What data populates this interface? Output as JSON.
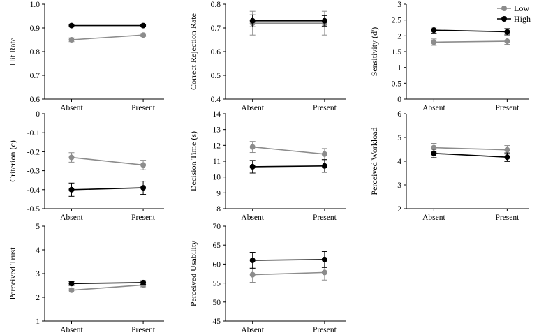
{
  "legend": [
    {
      "name": "Low",
      "color": "#8c8c8c"
    },
    {
      "name": "High",
      "color": "#000000"
    }
  ],
  "chart_data": [
    {
      "type": "line",
      "categories": [
        "Absent",
        "Present"
      ],
      "ylabel": "Hit Rate",
      "ylim": [
        0.6,
        1.0
      ],
      "yticks": [
        "0.6",
        "0.7",
        "0.8",
        "0.9",
        "1.0"
      ],
      "series": [
        {
          "name": "Low",
          "values": [
            0.85,
            0.87
          ],
          "errors": [
            0.008,
            0.006
          ]
        },
        {
          "name": "High",
          "values": [
            0.91,
            0.91
          ],
          "errors": [
            0.005,
            0.004
          ]
        }
      ]
    },
    {
      "type": "line",
      "categories": [
        "Absent",
        "Present"
      ],
      "ylabel": "Correct Rejection Rate",
      "ylim": [
        0.4,
        0.8
      ],
      "yticks": [
        "0.4",
        "0.5",
        "0.6",
        "0.7",
        "0.8"
      ],
      "series": [
        {
          "name": "Low",
          "values": [
            0.72,
            0.72
          ],
          "errors": [
            0.05,
            0.05
          ]
        },
        {
          "name": "High",
          "values": [
            0.73,
            0.73
          ],
          "errors": [
            0.025,
            0.022
          ]
        }
      ]
    },
    {
      "type": "line",
      "categories": [
        "Absent",
        "Present"
      ],
      "ylabel": "Sensitivity (d')",
      "ylim": [
        0,
        3
      ],
      "yticks": [
        "0",
        "0.5",
        "1",
        "1.5",
        "2",
        "2.5",
        "3"
      ],
      "series": [
        {
          "name": "Low",
          "values": [
            1.8,
            1.83
          ],
          "errors": [
            0.1,
            0.1
          ]
        },
        {
          "name": "High",
          "values": [
            2.18,
            2.13
          ],
          "errors": [
            0.1,
            0.1
          ]
        }
      ]
    },
    {
      "type": "line",
      "categories": [
        "Absent",
        "Present"
      ],
      "ylabel": "Criterion (c)",
      "ylim": [
        -0.5,
        0
      ],
      "yticks": [
        "-0.5",
        "-0.4",
        "-0.3",
        "-0.2",
        "-0.1",
        "0"
      ],
      "series": [
        {
          "name": "Low",
          "values": [
            -0.23,
            -0.27
          ],
          "errors": [
            0.025,
            0.025
          ]
        },
        {
          "name": "High",
          "values": [
            -0.4,
            -0.39
          ],
          "errors": [
            0.035,
            0.035
          ]
        }
      ]
    },
    {
      "type": "line",
      "categories": [
        "Absent",
        "Present"
      ],
      "ylabel": "Decision Time (s)",
      "ylim": [
        8,
        14
      ],
      "yticks": [
        "8",
        "9",
        "10",
        "11",
        "12",
        "13",
        "14"
      ],
      "series": [
        {
          "name": "Low",
          "values": [
            11.9,
            11.45
          ],
          "errors": [
            0.35,
            0.35
          ]
        },
        {
          "name": "High",
          "values": [
            10.65,
            10.7
          ],
          "errors": [
            0.4,
            0.4
          ]
        }
      ]
    },
    {
      "type": "line",
      "categories": [
        "Absent",
        "Present"
      ],
      "ylabel": "Perceived Workload",
      "ylim": [
        2,
        6
      ],
      "yticks": [
        "2",
        "3",
        "4",
        "5",
        "6"
      ],
      "series": [
        {
          "name": "Low",
          "values": [
            4.57,
            4.48
          ],
          "errors": [
            0.18,
            0.18
          ]
        },
        {
          "name": "High",
          "values": [
            4.33,
            4.17
          ],
          "errors": [
            0.18,
            0.18
          ]
        }
      ]
    },
    {
      "type": "line",
      "categories": [
        "Absent",
        "Present"
      ],
      "ylabel": "Perceived Trust",
      "ylim": [
        1,
        5
      ],
      "yticks": [
        "1",
        "2",
        "3",
        "4",
        "5"
      ],
      "series": [
        {
          "name": "Low",
          "values": [
            2.3,
            2.52
          ],
          "errors": [
            0.08,
            0.08
          ]
        },
        {
          "name": "High",
          "values": [
            2.58,
            2.62
          ],
          "errors": [
            0.08,
            0.08
          ]
        }
      ]
    },
    {
      "type": "line",
      "categories": [
        "Absent",
        "Present"
      ],
      "ylabel": "Perceived Usability",
      "ylim": [
        45,
        70
      ],
      "yticks": [
        "45",
        "50",
        "55",
        "60",
        "65",
        "70"
      ],
      "series": [
        {
          "name": "Low",
          "values": [
            57.2,
            57.8
          ],
          "errors": [
            2.0,
            2.0
          ]
        },
        {
          "name": "High",
          "values": [
            61.0,
            61.2
          ],
          "errors": [
            2.1,
            2.1
          ]
        }
      ]
    }
  ]
}
